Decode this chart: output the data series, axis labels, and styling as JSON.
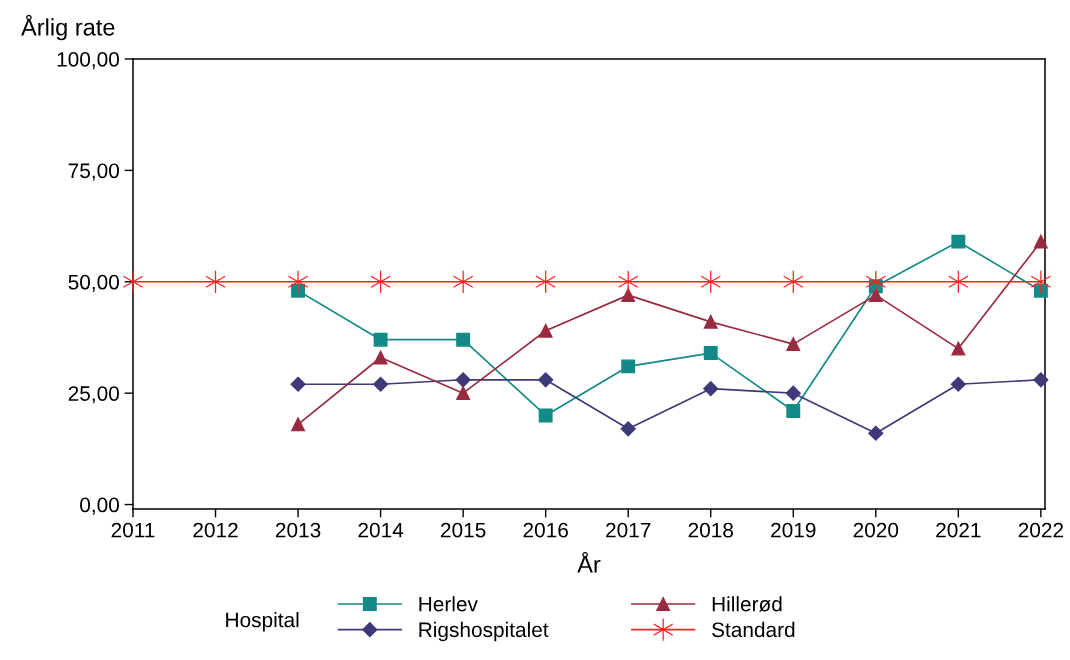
{
  "chart_data": {
    "type": "line",
    "xlabel": "År",
    "ylabel": "Årlig rate",
    "legend_title": "Hospital",
    "x": [
      2011,
      2012,
      2013,
      2014,
      2015,
      2016,
      2017,
      2018,
      2019,
      2020,
      2021,
      2022
    ],
    "xlim": [
      2011,
      2022.05
    ],
    "xticks": [
      2011,
      2012,
      2013,
      2014,
      2015,
      2016,
      2017,
      2018,
      2019,
      2020,
      2021,
      2022
    ],
    "ylim": [
      -1,
      100
    ],
    "yticks": [
      {
        "value": 0,
        "label": "0,00"
      },
      {
        "value": 25,
        "label": "25,00"
      },
      {
        "value": 50,
        "label": "50,00"
      },
      {
        "value": 75,
        "label": "75,00"
      },
      {
        "value": 100,
        "label": "100,00"
      }
    ],
    "grid": false,
    "legend": "bottom",
    "line_style": "solid",
    "series": [
      {
        "name": "Herlev",
        "color": "#138a87",
        "marker": "square",
        "values": [
          null,
          null,
          48,
          37,
          37,
          20,
          31,
          34,
          21,
          49,
          59,
          48
        ]
      },
      {
        "name": "Rigshospitalet",
        "color": "#3c3a78",
        "marker": "diamond",
        "values": [
          null,
          null,
          27,
          27,
          28,
          28,
          17,
          26,
          25,
          16,
          27,
          28
        ]
      },
      {
        "name": "Hillerød",
        "color": "#9a2a40",
        "marker": "triangle",
        "values": [
          null,
          null,
          18,
          33,
          25,
          39,
          47,
          41,
          36,
          47,
          35,
          59
        ]
      },
      {
        "name": "Standard",
        "color": "#ff2020",
        "marker": "cross",
        "values": [
          50,
          50,
          50,
          50,
          50,
          50,
          50,
          50,
          50,
          50,
          50,
          50
        ]
      }
    ]
  }
}
